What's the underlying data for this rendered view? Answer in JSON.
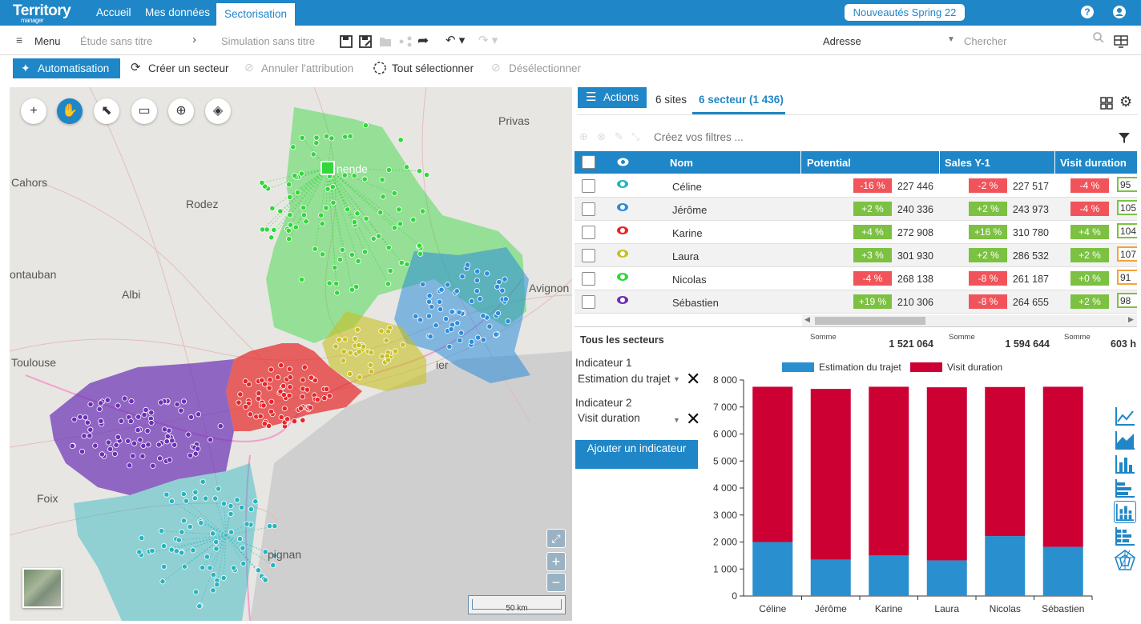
{
  "app": {
    "logo_main": "Territory",
    "logo_sub": "manager"
  },
  "topnav": {
    "items": [
      "Accueil",
      "Mes données"
    ],
    "active": "Sectorisation",
    "news_button": "Nouveautés Spring 22"
  },
  "toolbar1": {
    "menu_label": "Menu",
    "study_title": "Étude sans titre",
    "simulation_title": "Simulation sans titre",
    "address_select": "Adresse",
    "search_placeholder": "Chercher"
  },
  "toolbar2": {
    "automation": "Automatisation",
    "create_sector": "Créer un secteur",
    "cancel_attribution": "Annuler l'attribution",
    "select_all": "Tout sélectionner",
    "deselect": "Désélectionner"
  },
  "map": {
    "cities": [
      "Privas",
      "Cahors",
      "Rodez",
      "ontauban",
      "Albi",
      "Avignon",
      "Toulouse",
      "Foix",
      "pignan",
      "nende",
      "ier"
    ],
    "scale_label": "50 km",
    "sector_colors": {
      "Céline": "#26b5c0",
      "Jérôme": "#2b8ddb",
      "Karine": "#e6262a",
      "Laura": "#c8c023",
      "Nicolas": "#30d83a",
      "Sébastien": "#6b2fb6"
    }
  },
  "panel": {
    "actions_button": "Actions",
    "tab_sites": "6 sites",
    "tab_sectors": "6 secteur (1 436)",
    "filter_placeholder": "Créez vos filtres ..."
  },
  "grid": {
    "columns": [
      "Nom",
      "Potential",
      "Sales Y-1",
      "Visit duration"
    ],
    "rows": [
      {
        "name": "Céline",
        "eye": "#26b5c0",
        "pot_pct": "-16 %",
        "pot_pct_color": "#f0545a",
        "pot_val": "227 446",
        "sales_pct": "-2 %",
        "sales_pct_color": "#f0545a",
        "sales_val": "227 517",
        "visit_pct": "-4 %",
        "visit_pct_color": "#f0545a",
        "visit_partial": "95",
        "partial_color": "#7cc142"
      },
      {
        "name": "Jérôme",
        "eye": "#2b8ddb",
        "pot_pct": "+2 %",
        "pot_pct_color": "#7cc142",
        "pot_val": "240 336",
        "sales_pct": "+2 %",
        "sales_pct_color": "#7cc142",
        "sales_val": "243 973",
        "visit_pct": "-4 %",
        "visit_pct_color": "#f0545a",
        "visit_partial": "105",
        "partial_color": "#7cc142"
      },
      {
        "name": "Karine",
        "eye": "#e6262a",
        "pot_pct": "+4 %",
        "pot_pct_color": "#7cc142",
        "pot_val": "272 908",
        "sales_pct": "+16 %",
        "sales_pct_color": "#7cc142",
        "sales_val": "310 780",
        "visit_pct": "+4 %",
        "visit_pct_color": "#7cc142",
        "visit_partial": "104",
        "partial_color": "#7cc142"
      },
      {
        "name": "Laura",
        "eye": "#c8c023",
        "pot_pct": "+3 %",
        "pot_pct_color": "#7cc142",
        "pot_val": "301 930",
        "sales_pct": "+2 %",
        "sales_pct_color": "#7cc142",
        "sales_val": "286 532",
        "visit_pct": "+2 %",
        "visit_pct_color": "#7cc142",
        "visit_partial": "107",
        "partial_color": "#f3a43a"
      },
      {
        "name": "Nicolas",
        "eye": "#30d83a",
        "pot_pct": "-4 %",
        "pot_pct_color": "#f0545a",
        "pot_val": "268 138",
        "sales_pct": "-8 %",
        "sales_pct_color": "#f0545a",
        "sales_val": "261 187",
        "visit_pct": "+0 %",
        "visit_pct_color": "#7cc142",
        "visit_partial": "91",
        "partial_color": "#f3a43a"
      },
      {
        "name": "Sébastien",
        "eye": "#6b2fb6",
        "pot_pct": "+19 %",
        "pot_pct_color": "#7cc142",
        "pot_val": "210 306",
        "sales_pct": "-8 %",
        "sales_pct_color": "#f0545a",
        "sales_val": "264 655",
        "visit_pct": "+2 %",
        "visit_pct_color": "#7cc142",
        "visit_partial": "98",
        "partial_color": "#7cc142"
      }
    ],
    "footer": {
      "label": "Tous les secteurs",
      "sum_label": "Somme",
      "potential_sum": "1 521 064",
      "sales_sum": "1 594 644",
      "visit_sum": "603 h"
    }
  },
  "indicators": {
    "ind1_label": "Indicateur 1",
    "ind1_value": "Estimation du trajet",
    "ind2_label": "Indicateur 2",
    "ind2_value": "Visit duration",
    "add_button": "Ajouter un indicateur"
  },
  "chart_data": {
    "type": "bar",
    "stacked": true,
    "categories": [
      "Céline",
      "Jérôme",
      "Karine",
      "Laura",
      "Nicolas",
      "Sébastien"
    ],
    "series": [
      {
        "name": "Estimation du trajet",
        "color": "#2a8fce",
        "values": [
          2000,
          1350,
          1500,
          1320,
          2220,
          1820
        ]
      },
      {
        "name": "Visit duration",
        "color": "#cc0033",
        "values": [
          5750,
          6320,
          6250,
          6410,
          5520,
          5930
        ]
      }
    ],
    "ylim": [
      0,
      8000
    ],
    "yticks": [
      "0",
      "1 000",
      "2 000",
      "3 000",
      "4 000",
      "5 000",
      "6 000",
      "7 000",
      "8 000"
    ],
    "legend": "top",
    "grid": false
  }
}
